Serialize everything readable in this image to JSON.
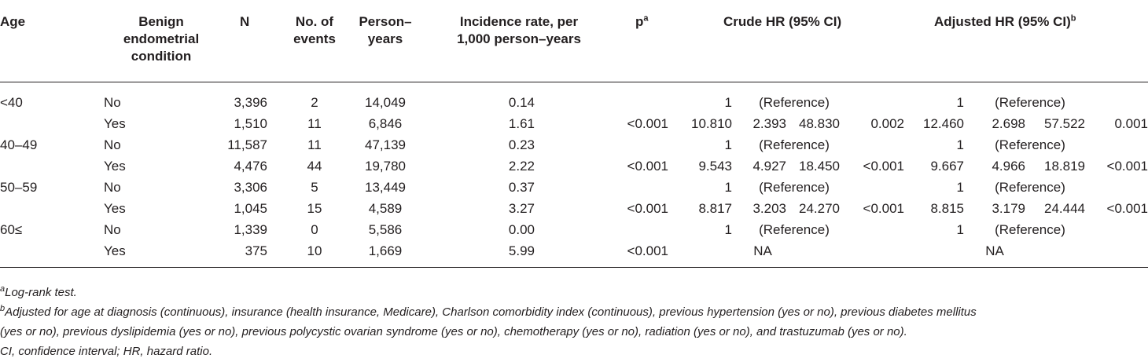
{
  "header": {
    "age": "Age",
    "benign": [
      "Benign",
      "endometrial",
      "condition"
    ],
    "n": "N",
    "events": [
      "No. of",
      "events"
    ],
    "person_years": [
      "Person–",
      "years"
    ],
    "incidence": [
      "Incidence rate, per",
      "1,000 person–years"
    ],
    "p": "p",
    "p_sup": "a",
    "crude": "Crude HR (95% CI)",
    "adjusted": "Adjusted HR (95% CI)",
    "adjusted_sup": "b"
  },
  "rows": [
    {
      "age": "<40",
      "cond": "No",
      "n": "3,396",
      "events": "2",
      "py": "14,049",
      "ir": "0.14",
      "p": "",
      "c_hr": "1",
      "c_ref": "(Reference)",
      "c_lo": "",
      "c_hi": "",
      "c_p": "",
      "a_hr": "1",
      "a_ref": "(Reference)",
      "a_lo": "",
      "a_hi": "",
      "a_p": ""
    },
    {
      "age": "",
      "cond": "Yes",
      "n": "1,510",
      "events": "11",
      "py": "6,846",
      "ir": "1.61",
      "p": "<0.001",
      "c_hr": "10.810",
      "c_ref": "",
      "c_lo": "2.393",
      "c_hi": "48.830",
      "c_p": "0.002",
      "a_hr": "12.460",
      "a_ref": "",
      "a_lo": "2.698",
      "a_hi": "57.522",
      "a_p": "0.001"
    },
    {
      "age": "40–49",
      "cond": "No",
      "n": "11,587",
      "events": "11",
      "py": "47,139",
      "ir": "0.23",
      "p": "",
      "c_hr": "1",
      "c_ref": "(Reference)",
      "c_lo": "",
      "c_hi": "",
      "c_p": "",
      "a_hr": "1",
      "a_ref": "(Reference)",
      "a_lo": "",
      "a_hi": "",
      "a_p": ""
    },
    {
      "age": "",
      "cond": "Yes",
      "n": "4,476",
      "events": "44",
      "py": "19,780",
      "ir": "2.22",
      "p": "<0.001",
      "c_hr": "9.543",
      "c_ref": "",
      "c_lo": "4.927",
      "c_hi": "18.450",
      "c_p": "<0.001",
      "a_hr": "9.667",
      "a_ref": "",
      "a_lo": "4.966",
      "a_hi": "18.819",
      "a_p": "<0.001"
    },
    {
      "age": "50–59",
      "cond": "No",
      "n": "3,306",
      "events": "5",
      "py": "13,449",
      "ir": "0.37",
      "p": "",
      "c_hr": "1",
      "c_ref": "(Reference)",
      "c_lo": "",
      "c_hi": "",
      "c_p": "",
      "a_hr": "1",
      "a_ref": "(Reference)",
      "a_lo": "",
      "a_hi": "",
      "a_p": ""
    },
    {
      "age": "",
      "cond": "Yes",
      "n": "1,045",
      "events": "15",
      "py": "4,589",
      "ir": "3.27",
      "p": "<0.001",
      "c_hr": "8.817",
      "c_ref": "",
      "c_lo": "3.203",
      "c_hi": "24.270",
      "c_p": "<0.001",
      "a_hr": "8.815",
      "a_ref": "",
      "a_lo": "3.179",
      "a_hi": "24.444",
      "a_p": "<0.001"
    },
    {
      "age": "60≤",
      "cond": "No",
      "n": "1,339",
      "events": "0",
      "py": "5,586",
      "ir": "0.00",
      "p": "",
      "c_hr": "1",
      "c_ref": "(Reference)",
      "c_lo": "",
      "c_hi": "",
      "c_p": "",
      "a_hr": "1",
      "a_ref": "(Reference)",
      "a_lo": "",
      "a_hi": "",
      "a_p": ""
    },
    {
      "age": "",
      "cond": "Yes",
      "n": "375",
      "events": "10",
      "py": "1,669",
      "ir": "5.99",
      "p": "<0.001",
      "c_hr": "",
      "c_ref": "NA",
      "c_lo": "",
      "c_hi": "",
      "c_p": "",
      "a_hr": "",
      "a_ref": "NA",
      "a_lo": "",
      "a_hi": "",
      "a_p": ""
    }
  ],
  "footnotes": {
    "a_mark": "a",
    "a_text": "Log-rank test.",
    "b_mark": "b",
    "b_text_1": "Adjusted for age at diagnosis (continuous), insurance (health insurance, Medicare), Charlson comorbidity index (continuous), previous hypertension (yes or no), previous diabetes mellitus",
    "b_text_2": "(yes or no), previous dyslipidemia (yes or no), previous polycystic ovarian syndrome (yes or no), chemotherapy (yes or no), radiation (yes or no), and trastuzumab (yes or no).",
    "abbrev": "CI, confidence interval; HR, hazard ratio."
  }
}
